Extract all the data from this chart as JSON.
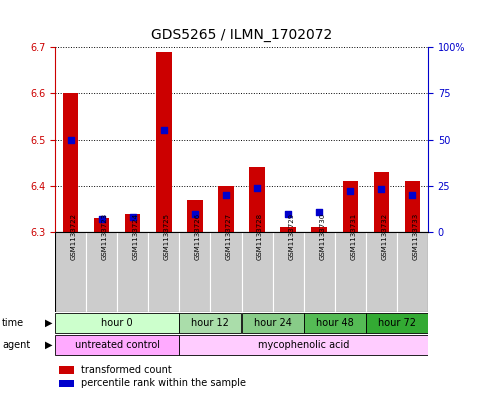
{
  "title": "GDS5265 / ILMN_1702072",
  "samples": [
    "GSM1133722",
    "GSM1133723",
    "GSM1133724",
    "GSM1133725",
    "GSM1133726",
    "GSM1133727",
    "GSM1133728",
    "GSM1133729",
    "GSM1133730",
    "GSM1133731",
    "GSM1133732",
    "GSM1133733"
  ],
  "transformed_count": [
    6.6,
    6.33,
    6.34,
    6.69,
    6.37,
    6.4,
    6.44,
    6.31,
    6.31,
    6.41,
    6.43,
    6.41
  ],
  "percentile_rank": [
    50,
    7,
    8,
    55,
    10,
    20,
    24,
    10,
    11,
    22,
    23,
    20
  ],
  "y_min": 6.3,
  "y_max": 6.7,
  "y_ticks": [
    6.3,
    6.4,
    6.5,
    6.6,
    6.7
  ],
  "right_y_ticks": [
    0,
    25,
    50,
    75,
    100
  ],
  "right_y_labels": [
    "0",
    "25",
    "50",
    "75",
    "100%"
  ],
  "bar_color": "#cc0000",
  "dot_color": "#0000cc",
  "time_groups": [
    {
      "label": "hour 0",
      "start": 0,
      "end": 3,
      "color": "#ccffcc"
    },
    {
      "label": "hour 12",
      "start": 4,
      "end": 5,
      "color": "#aaddaa"
    },
    {
      "label": "hour 24",
      "start": 6,
      "end": 7,
      "color": "#88cc88"
    },
    {
      "label": "hour 48",
      "start": 8,
      "end": 9,
      "color": "#55bb55"
    },
    {
      "label": "hour 72",
      "start": 10,
      "end": 11,
      "color": "#33aa33"
    }
  ],
  "agent_groups": [
    {
      "label": "untreated control",
      "start": 0,
      "end": 3,
      "color": "#ffaaff"
    },
    {
      "label": "mycophenolic acid",
      "start": 4,
      "end": 11,
      "color": "#ffccff"
    }
  ],
  "legend_bar_label": "transformed count",
  "legend_dot_label": "percentile rank within the sample",
  "left_axis_color": "#cc0000",
  "right_axis_color": "#0000cc",
  "sample_col_color": "#cccccc",
  "title_fontsize": 10,
  "tick_fontsize": 7,
  "sample_fontsize": 5,
  "row_fontsize": 7,
  "legend_fontsize": 7
}
